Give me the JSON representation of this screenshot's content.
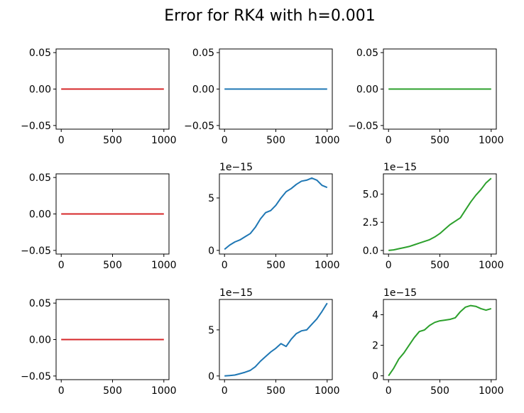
{
  "figure": {
    "title": "Error for RK4 with h=0.001"
  },
  "colors": {
    "red": "#d62728",
    "blue": "#1f77b4",
    "green": "#2ca02c"
  },
  "chart_data": [
    {
      "type": "line",
      "row": 1,
      "col": 1,
      "color": "red",
      "offset_label": "",
      "x": [
        0,
        1000
      ],
      "y": [
        0.0,
        0.0
      ],
      "xlim": [
        -50,
        1050
      ],
      "ylim": [
        -0.055,
        0.055
      ],
      "xticks": [
        0,
        500,
        1000
      ],
      "xtick_labels": [
        "0",
        "500",
        "1000"
      ],
      "yticks": [
        -0.05,
        0.0,
        0.05
      ],
      "ytick_labels": [
        "−0.05",
        "0.00",
        "0.05"
      ]
    },
    {
      "type": "line",
      "row": 1,
      "col": 2,
      "color": "blue",
      "offset_label": "",
      "x": [
        0,
        1000
      ],
      "y": [
        0.0,
        0.0
      ],
      "xlim": [
        -50,
        1050
      ],
      "ylim": [
        -0.055,
        0.055
      ],
      "xticks": [
        0,
        500,
        1000
      ],
      "xtick_labels": [
        "0",
        "500",
        "1000"
      ],
      "yticks": [
        -0.05,
        0.0,
        0.05
      ],
      "ytick_labels": [
        "−0.05",
        "0.00",
        "0.05"
      ]
    },
    {
      "type": "line",
      "row": 1,
      "col": 3,
      "color": "green",
      "offset_label": "",
      "x": [
        0,
        1000
      ],
      "y": [
        0.0,
        0.0
      ],
      "xlim": [
        -50,
        1050
      ],
      "ylim": [
        -0.055,
        0.055
      ],
      "xticks": [
        0,
        500,
        1000
      ],
      "xtick_labels": [
        "0",
        "500",
        "1000"
      ],
      "yticks": [
        -0.05,
        0.0,
        0.05
      ],
      "ytick_labels": [
        "−0.05",
        "0.00",
        "0.05"
      ]
    },
    {
      "type": "line",
      "row": 2,
      "col": 1,
      "color": "red",
      "offset_label": "",
      "x": [
        0,
        1000
      ],
      "y": [
        0.0,
        0.0
      ],
      "xlim": [
        -50,
        1050
      ],
      "ylim": [
        -0.055,
        0.055
      ],
      "xticks": [
        0,
        500,
        1000
      ],
      "xtick_labels": [
        "0",
        "500",
        "1000"
      ],
      "yticks": [
        -0.05,
        0.0,
        0.05
      ],
      "ytick_labels": [
        "−0.05",
        "0.00",
        "0.05"
      ]
    },
    {
      "type": "line",
      "row": 2,
      "col": 2,
      "color": "blue",
      "offset_label": "1e−15",
      "x": [
        0,
        50,
        100,
        150,
        200,
        250,
        300,
        350,
        400,
        450,
        500,
        550,
        600,
        650,
        700,
        750,
        800,
        850,
        900,
        950,
        1000
      ],
      "y": [
        0.1,
        0.5,
        0.8,
        1.0,
        1.3,
        1.6,
        2.2,
        3.0,
        3.6,
        3.8,
        4.3,
        5.0,
        5.6,
        5.9,
        6.3,
        6.6,
        6.7,
        6.9,
        6.7,
        6.2,
        6.0
      ],
      "xlim": [
        -50,
        1050
      ],
      "ylim": [
        -0.35,
        7.3
      ],
      "xticks": [
        0,
        500,
        1000
      ],
      "xtick_labels": [
        "0",
        "500",
        "1000"
      ],
      "yticks": [
        0,
        5
      ],
      "ytick_labels": [
        "0",
        "5"
      ]
    },
    {
      "type": "line",
      "row": 2,
      "col": 3,
      "color": "green",
      "offset_label": "1e−15",
      "x": [
        0,
        50,
        100,
        150,
        200,
        250,
        300,
        350,
        400,
        450,
        500,
        550,
        600,
        650,
        700,
        750,
        800,
        850,
        900,
        950,
        1000
      ],
      "y": [
        0.0,
        0.05,
        0.15,
        0.25,
        0.35,
        0.5,
        0.65,
        0.8,
        0.95,
        1.2,
        1.5,
        1.9,
        2.3,
        2.6,
        2.9,
        3.6,
        4.3,
        4.9,
        5.4,
        6.0,
        6.4
      ],
      "xlim": [
        -50,
        1050
      ],
      "ylim": [
        -0.32,
        6.8
      ],
      "xticks": [
        0,
        500,
        1000
      ],
      "xtick_labels": [
        "0",
        "500",
        "1000"
      ],
      "yticks": [
        0.0,
        2.5,
        5.0
      ],
      "ytick_labels": [
        "0.0",
        "2.5",
        "5.0"
      ]
    },
    {
      "type": "line",
      "row": 3,
      "col": 1,
      "color": "red",
      "offset_label": "",
      "x": [
        0,
        1000
      ],
      "y": [
        0.0,
        0.0
      ],
      "xlim": [
        -50,
        1050
      ],
      "ylim": [
        -0.055,
        0.055
      ],
      "xticks": [
        0,
        500,
        1000
      ],
      "xtick_labels": [
        "0",
        "500",
        "1000"
      ],
      "yticks": [
        -0.05,
        0.0,
        0.05
      ],
      "ytick_labels": [
        "−0.05",
        "0.00",
        "0.05"
      ]
    },
    {
      "type": "line",
      "row": 3,
      "col": 2,
      "color": "blue",
      "offset_label": "1e−15",
      "x": [
        0,
        50,
        100,
        150,
        200,
        250,
        300,
        350,
        400,
        450,
        500,
        550,
        600,
        650,
        700,
        750,
        800,
        850,
        900,
        950,
        1000
      ],
      "y": [
        0.0,
        0.05,
        0.1,
        0.25,
        0.4,
        0.6,
        1.0,
        1.6,
        2.1,
        2.6,
        3.0,
        3.5,
        3.2,
        4.0,
        4.6,
        4.9,
        5.0,
        5.6,
        6.2,
        7.0,
        7.9
      ],
      "xlim": [
        -50,
        1050
      ],
      "ylim": [
        -0.4,
        8.3
      ],
      "xticks": [
        0,
        500,
        1000
      ],
      "xtick_labels": [
        "0",
        "500",
        "1000"
      ],
      "yticks": [
        0,
        5
      ],
      "ytick_labels": [
        "0",
        "5"
      ]
    },
    {
      "type": "line",
      "row": 3,
      "col": 3,
      "color": "green",
      "offset_label": "1e−15",
      "x": [
        0,
        50,
        100,
        150,
        200,
        250,
        300,
        350,
        400,
        450,
        500,
        550,
        600,
        650,
        700,
        750,
        800,
        850,
        900,
        950,
        1000
      ],
      "y": [
        0.0,
        0.5,
        1.1,
        1.5,
        2.0,
        2.5,
        2.9,
        3.0,
        3.3,
        3.5,
        3.6,
        3.65,
        3.7,
        3.8,
        4.2,
        4.5,
        4.6,
        4.55,
        4.4,
        4.3,
        4.4
      ],
      "xlim": [
        -50,
        1050
      ],
      "ylim": [
        -0.25,
        5.0
      ],
      "xticks": [
        0,
        500,
        1000
      ],
      "xtick_labels": [
        "0",
        "500",
        "1000"
      ],
      "yticks": [
        0,
        2,
        4
      ],
      "ytick_labels": [
        "0",
        "2",
        "4"
      ]
    }
  ]
}
